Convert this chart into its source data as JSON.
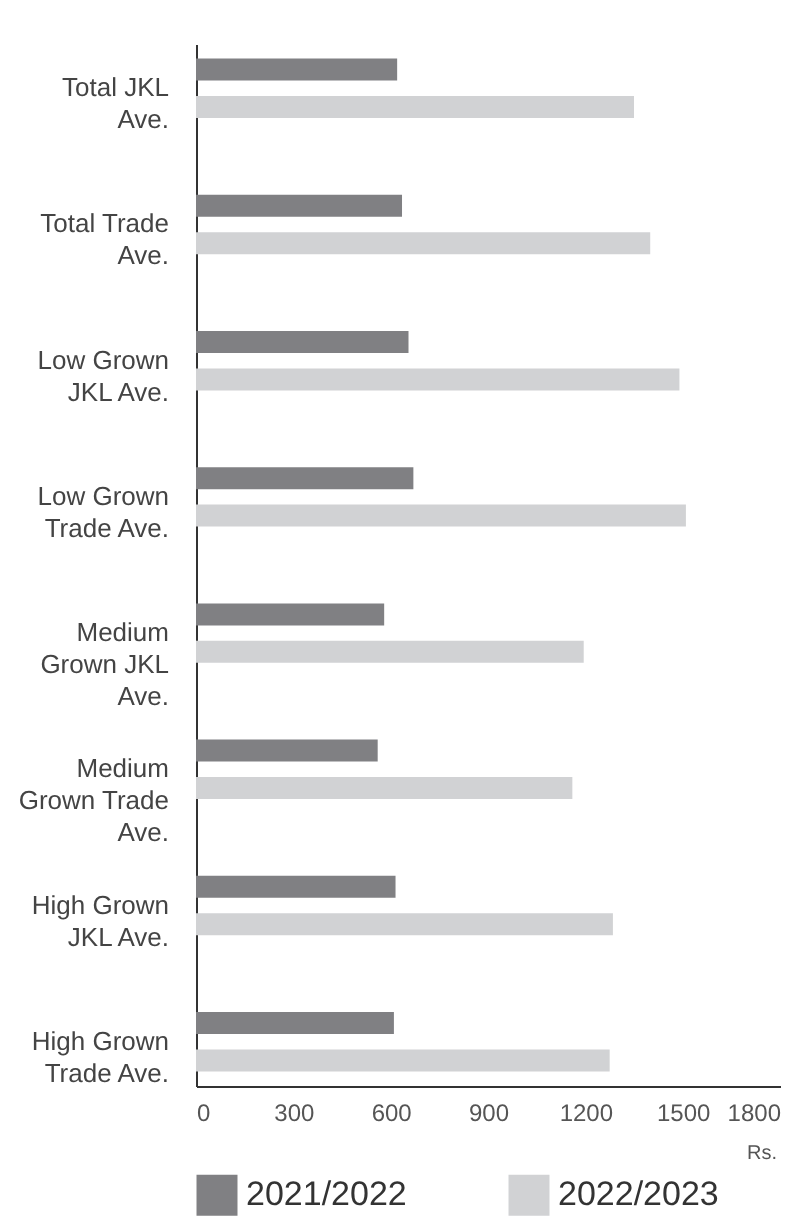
{
  "chart_data": {
    "type": "bar",
    "orientation": "horizontal",
    "xlabel": "Rs.",
    "categories": [
      "Total JKL Ave.",
      "Total Trade Ave.",
      "Low Grown JKL Ave.",
      "Low Grown Trade Ave.",
      "Medium Grown JKL Ave.",
      "Medium Grown Trade Ave.",
      "High Grown JKL Ave.",
      "High Grown Trade Ave."
    ],
    "series": [
      {
        "name": "2021/2022",
        "color": "#808083",
        "values": [
          620,
          635,
          655,
          670,
          580,
          560,
          615,
          610
        ]
      },
      {
        "name": "2022/2023",
        "color": "#d1d2d4",
        "values": [
          1350,
          1400,
          1490,
          1510,
          1195,
          1160,
          1285,
          1275
        ]
      }
    ],
    "xlim": [
      0,
      1800
    ],
    "xticks": [
      0,
      300,
      600,
      900,
      1200,
      1500,
      1800
    ],
    "grid": false,
    "legend": "bottom"
  }
}
